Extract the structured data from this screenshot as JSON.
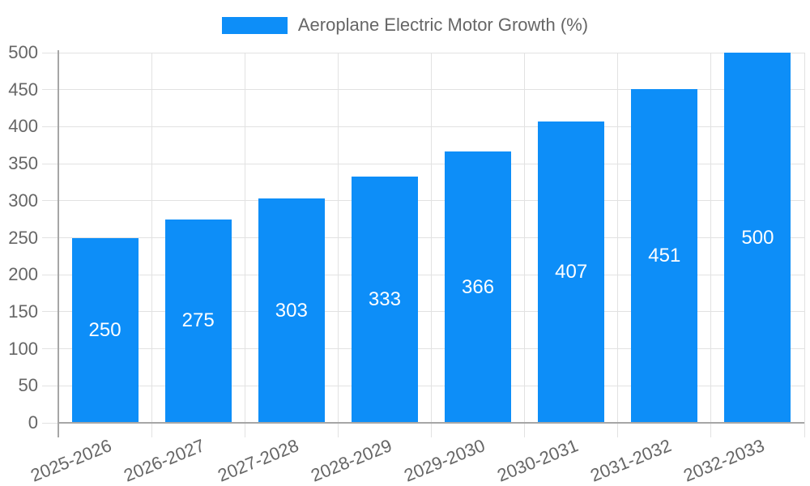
{
  "legend": {
    "label": "Aeroplane Electric Motor Growth (%)"
  },
  "chart_data": {
    "type": "bar",
    "title": "",
    "xlabel": "",
    "ylabel": "",
    "series_name": "Aeroplane Electric Motor Growth (%)",
    "categories": [
      "2025-2026",
      "2026-2027",
      "2027-2028",
      "2028-2029",
      "2029-2030",
      "2030-2031",
      "2031-2032",
      "2032-2033"
    ],
    "values": [
      250,
      275,
      303,
      333,
      366,
      407,
      451,
      500
    ],
    "value_labels": [
      "250",
      "275",
      "303",
      "333",
      "366",
      "407",
      "451",
      "500"
    ],
    "ylim": [
      0,
      500
    ],
    "yticks": [
      0,
      50,
      100,
      150,
      200,
      250,
      300,
      350,
      400,
      450,
      500
    ],
    "grid": true,
    "legend_position": "top",
    "xtick_rotation_deg": -22
  },
  "colors": {
    "bar": "#0d8ef8",
    "bar_value_label": "#ffffff",
    "grid": "#e2e2e2",
    "axis": "#a6a6a6",
    "tick_text": "#666666",
    "background": "#ffffff"
  }
}
